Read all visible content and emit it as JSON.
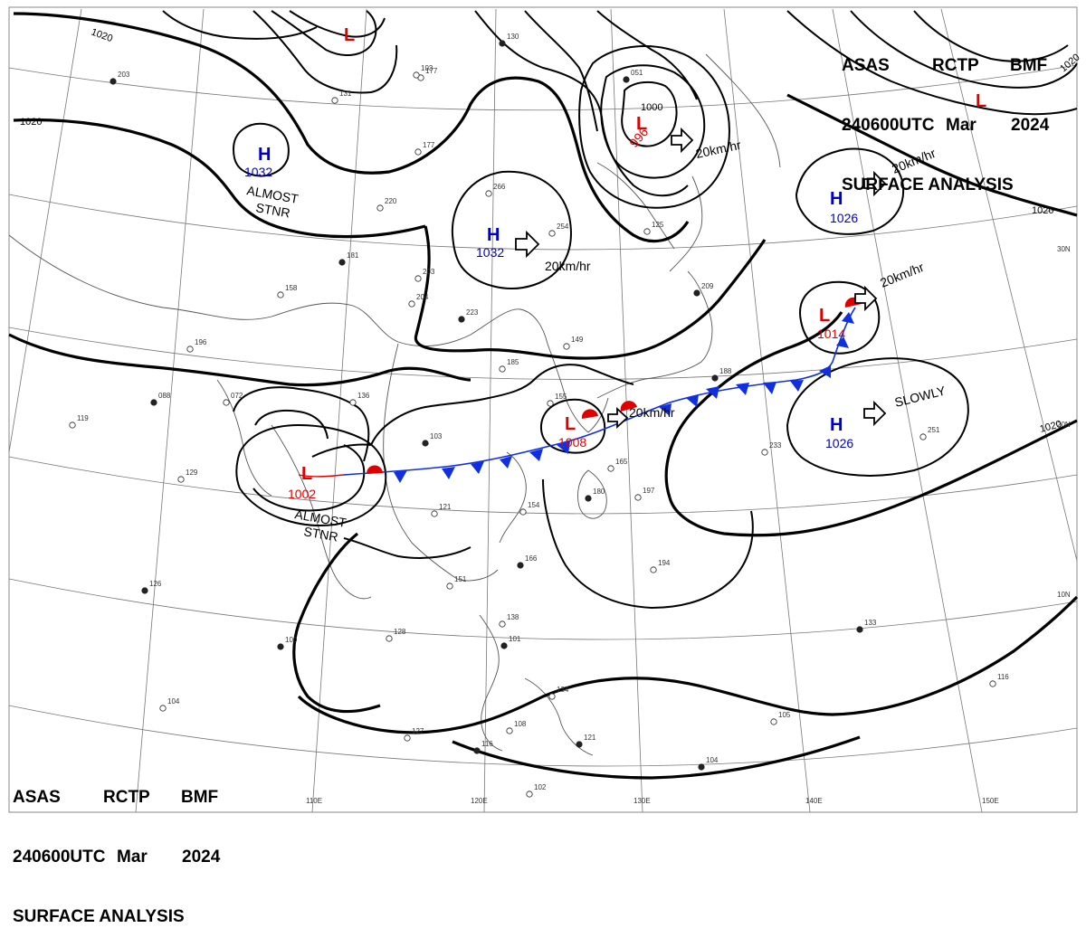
{
  "header": {
    "line1": [
      "ASAS",
      "RCTP",
      "BMF"
    ],
    "line2": [
      "240600UTC",
      "Mar",
      "2024"
    ],
    "line3": "SURFACE ANALYSIS"
  },
  "colors": {
    "low": "#e00000",
    "high": "#0000cc",
    "cold_front": "#1030e0",
    "warm_front": "#e00000",
    "isobar": "#000000"
  },
  "lon_labels": [
    "110E",
    "120E",
    "130E",
    "140E",
    "150E"
  ],
  "lat_labels": [
    "30N",
    "20N",
    "10N"
  ],
  "highs": [
    {
      "symbol": "H",
      "pressure": "1032"
    },
    {
      "symbol": "H",
      "pressure": "1032"
    },
    {
      "symbol": "H",
      "pressure": "1026"
    },
    {
      "symbol": "H",
      "pressure": "1026"
    }
  ],
  "lows": [
    {
      "symbol": "L",
      "pressure": ""
    },
    {
      "symbol": "L",
      "pressure": "996"
    },
    {
      "symbol": "L",
      "pressure": "1014"
    },
    {
      "symbol": "L",
      "pressure": "1008"
    },
    {
      "symbol": "L",
      "pressure": "1002"
    },
    {
      "symbol": "L",
      "pressure": ""
    }
  ],
  "isobar_labels": [
    "1020",
    "1020",
    "1020",
    "1020",
    "1020",
    "1000"
  ],
  "motions": [
    "20km/hr",
    "20km/hr",
    "20km/hr",
    "20km/hr",
    "20km/hr",
    "SLOWLY"
  ],
  "stationary_notes": [
    {
      "line1": "ALMOST",
      "line2": "STNR"
    },
    {
      "line1": "ALMOST",
      "line2": "STNR"
    }
  ],
  "station_obs": [
    "203",
    "177",
    "220",
    "181",
    "203",
    "204",
    "223",
    "158",
    "196",
    "088",
    "072",
    "136",
    "103",
    "121",
    "154",
    "166",
    "151",
    "128",
    "100",
    "104",
    "127",
    "116",
    "102",
    "138",
    "101",
    "134",
    "108",
    "121",
    "254",
    "266",
    "051",
    "125",
    "165",
    "180",
    "197",
    "194",
    "188",
    "233",
    "251",
    "133",
    "116",
    "105",
    "104",
    "119",
    "129",
    "126",
    "149",
    "185",
    "209",
    "155",
    "131",
    "130",
    "103",
    "177"
  ]
}
